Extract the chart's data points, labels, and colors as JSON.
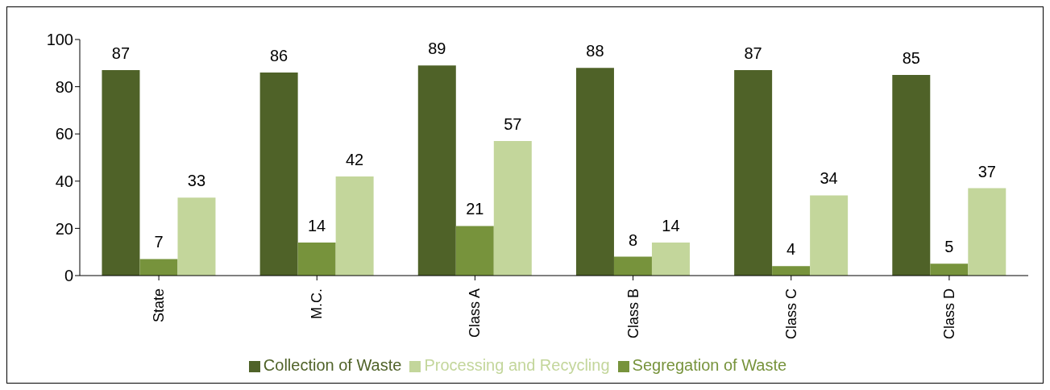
{
  "chart_data": {
    "type": "bar",
    "categories": [
      "State",
      "M.C.",
      "Class A",
      "Class B",
      "Class C",
      "Class D"
    ],
    "series": [
      {
        "name": "Collection of Waste",
        "color": "#4f6228",
        "values": [
          87,
          86,
          89,
          88,
          87,
          85
        ]
      },
      {
        "name": "Segregation of Waste",
        "color": "#77933c",
        "values": [
          7,
          14,
          21,
          8,
          4,
          5
        ]
      },
      {
        "name": "Processing and Recycling",
        "color": "#c3d69b",
        "values": [
          33,
          42,
          57,
          14,
          34,
          37
        ]
      }
    ],
    "ylim": [
      0,
      100
    ],
    "yticks": [
      0,
      20,
      40,
      60,
      80,
      100
    ],
    "grid": false,
    "legend": "bottom",
    "data_labels": true
  }
}
